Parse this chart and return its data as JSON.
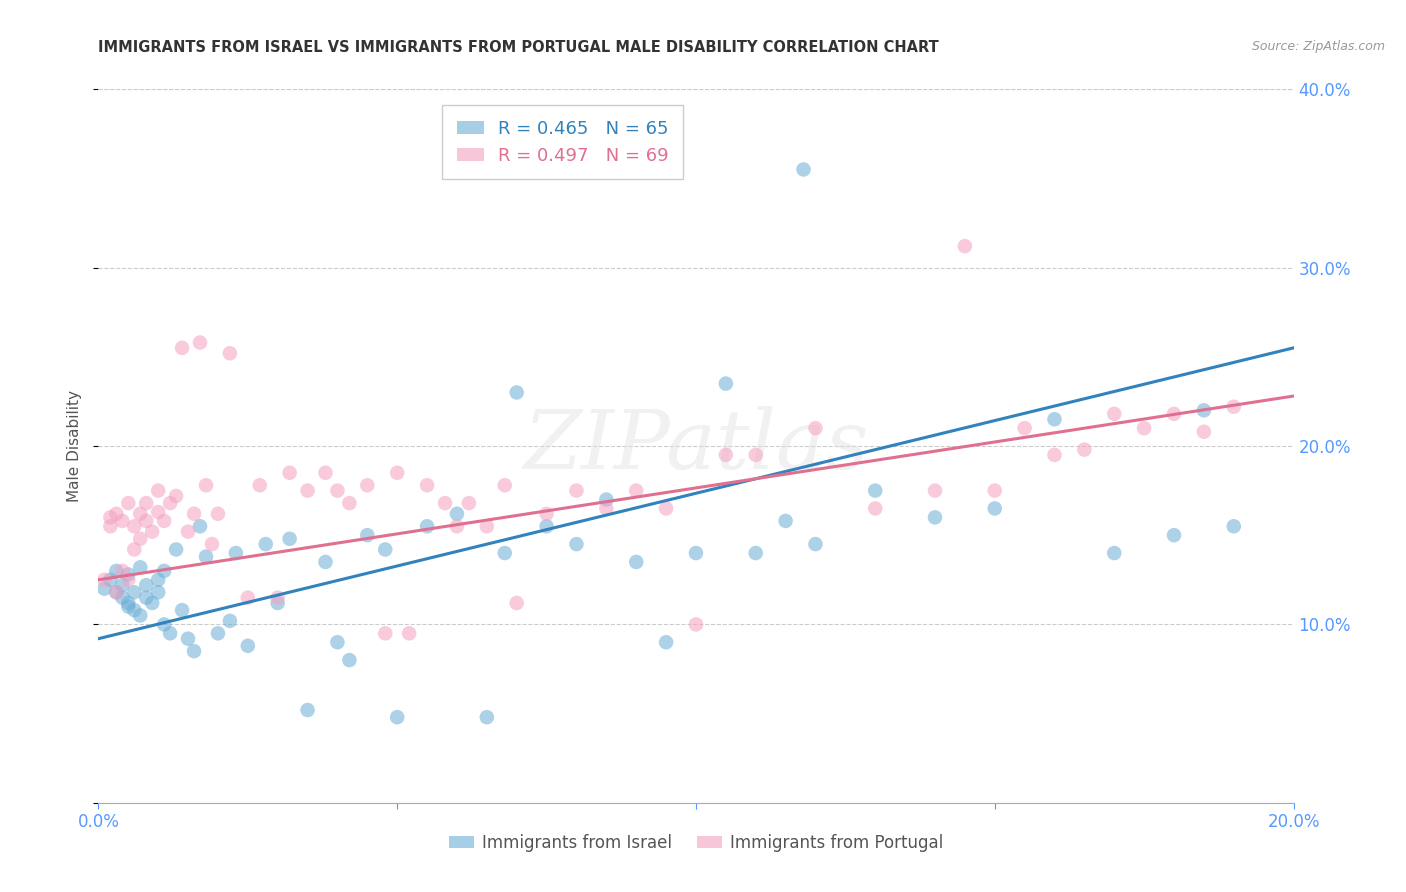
{
  "title": "IMMIGRANTS FROM ISRAEL VS IMMIGRANTS FROM PORTUGAL MALE DISABILITY CORRELATION CHART",
  "source": "Source: ZipAtlas.com",
  "ylabel": "Male Disability",
  "xlabel_israel": "Immigrants from Israel",
  "xlabel_portugal": "Immigrants from Portugal",
  "israel_R": 0.465,
  "israel_N": 65,
  "portugal_R": 0.497,
  "portugal_N": 69,
  "color_israel": "#6baed6",
  "color_portugal": "#f4a0c0",
  "color_israel_line": "#3182bd",
  "color_portugal_line": "#e07090",
  "color_axis": "#5599ff",
  "xlim": [
    0.0,
    0.2
  ],
  "ylim": [
    0.0,
    0.4
  ],
  "xticks": [
    0.0,
    0.05,
    0.1,
    0.15,
    0.2
  ],
  "yticks": [
    0.0,
    0.1,
    0.2,
    0.3,
    0.4
  ],
  "watermark": "ZIPatlas",
  "background": "#ffffff",
  "israel_line_x0": 0.0,
  "israel_line_y0": 0.092,
  "israel_line_x1": 0.2,
  "israel_line_y1": 0.255,
  "portugal_line_x0": 0.0,
  "portugal_line_y0": 0.125,
  "portugal_line_x1": 0.2,
  "portugal_line_y1": 0.228,
  "israel_x": [
    0.001,
    0.002,
    0.003,
    0.003,
    0.004,
    0.004,
    0.005,
    0.005,
    0.005,
    0.006,
    0.006,
    0.007,
    0.007,
    0.008,
    0.008,
    0.009,
    0.01,
    0.01,
    0.011,
    0.011,
    0.012,
    0.013,
    0.014,
    0.015,
    0.016,
    0.017,
    0.018,
    0.02,
    0.022,
    0.023,
    0.025,
    0.028,
    0.03,
    0.032,
    0.035,
    0.038,
    0.04,
    0.042,
    0.045,
    0.048,
    0.05,
    0.055,
    0.06,
    0.065,
    0.068,
    0.07,
    0.075,
    0.08,
    0.085,
    0.09,
    0.095,
    0.1,
    0.105,
    0.11,
    0.115,
    0.12,
    0.13,
    0.14,
    0.15,
    0.16,
    0.17,
    0.18,
    0.185,
    0.19,
    0.118
  ],
  "israel_y": [
    0.12,
    0.125,
    0.118,
    0.13,
    0.115,
    0.122,
    0.11,
    0.112,
    0.128,
    0.108,
    0.118,
    0.105,
    0.132,
    0.115,
    0.122,
    0.112,
    0.118,
    0.125,
    0.1,
    0.13,
    0.095,
    0.142,
    0.108,
    0.092,
    0.085,
    0.155,
    0.138,
    0.095,
    0.102,
    0.14,
    0.088,
    0.145,
    0.112,
    0.148,
    0.052,
    0.135,
    0.09,
    0.08,
    0.15,
    0.142,
    0.048,
    0.155,
    0.162,
    0.048,
    0.14,
    0.23,
    0.155,
    0.145,
    0.17,
    0.135,
    0.09,
    0.14,
    0.235,
    0.14,
    0.158,
    0.145,
    0.175,
    0.16,
    0.165,
    0.215,
    0.14,
    0.15,
    0.22,
    0.155,
    0.355
  ],
  "portugal_x": [
    0.001,
    0.002,
    0.002,
    0.003,
    0.003,
    0.004,
    0.004,
    0.005,
    0.005,
    0.006,
    0.006,
    0.007,
    0.007,
    0.008,
    0.008,
    0.009,
    0.01,
    0.01,
    0.011,
    0.012,
    0.013,
    0.014,
    0.015,
    0.016,
    0.017,
    0.018,
    0.019,
    0.02,
    0.022,
    0.025,
    0.027,
    0.03,
    0.032,
    0.035,
    0.038,
    0.04,
    0.042,
    0.045,
    0.048,
    0.05,
    0.052,
    0.055,
    0.058,
    0.06,
    0.062,
    0.065,
    0.068,
    0.07,
    0.075,
    0.08,
    0.085,
    0.09,
    0.095,
    0.1,
    0.105,
    0.11,
    0.12,
    0.13,
    0.14,
    0.15,
    0.155,
    0.16,
    0.165,
    0.17,
    0.175,
    0.18,
    0.185,
    0.19,
    0.145
  ],
  "portugal_y": [
    0.125,
    0.16,
    0.155,
    0.118,
    0.162,
    0.13,
    0.158,
    0.125,
    0.168,
    0.142,
    0.155,
    0.148,
    0.162,
    0.158,
    0.168,
    0.152,
    0.163,
    0.175,
    0.158,
    0.168,
    0.172,
    0.255,
    0.152,
    0.162,
    0.258,
    0.178,
    0.145,
    0.162,
    0.252,
    0.115,
    0.178,
    0.115,
    0.185,
    0.175,
    0.185,
    0.175,
    0.168,
    0.178,
    0.095,
    0.185,
    0.095,
    0.178,
    0.168,
    0.155,
    0.168,
    0.155,
    0.178,
    0.112,
    0.162,
    0.175,
    0.165,
    0.175,
    0.165,
    0.1,
    0.195,
    0.195,
    0.21,
    0.165,
    0.175,
    0.175,
    0.21,
    0.195,
    0.198,
    0.218,
    0.21,
    0.218,
    0.208,
    0.222,
    0.312
  ]
}
